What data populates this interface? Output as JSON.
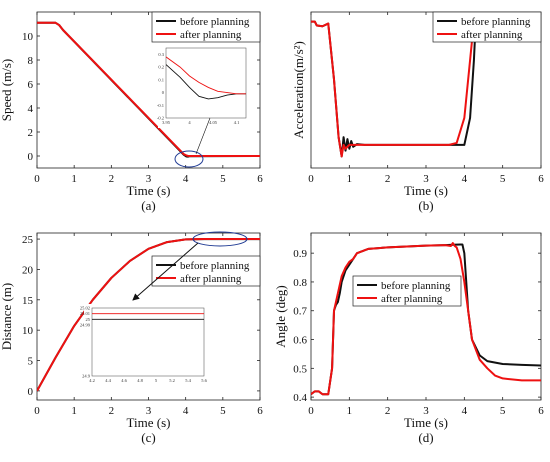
{
  "legend": {
    "before": "before planning",
    "after": "after planning"
  },
  "colors": {
    "before": "#111111",
    "after": "#ee1111",
    "inset_marker": "#1f3a93"
  },
  "chart_data": [
    {
      "id": "a",
      "type": "line",
      "label": "(a)",
      "xlabel": "Time (s)",
      "ylabel": "Speed (m/s)",
      "xlim": [
        0,
        6
      ],
      "ylim": [
        -1,
        12
      ],
      "xticks": [
        "0",
        "1",
        "2",
        "3",
        "4",
        "5",
        "6"
      ],
      "xtick_vals": [
        0,
        1,
        2,
        3,
        4,
        5,
        6
      ],
      "yticks": [
        "0",
        "2",
        "4",
        "6",
        "8",
        "10"
      ],
      "ytick_vals": [
        0,
        2,
        4,
        6,
        8,
        10
      ],
      "legend_position": "top-right",
      "grid": false,
      "series": [
        {
          "name": "before planning",
          "x": [
            0,
            0.5,
            0.6,
            0.7,
            3.95,
            4.02,
            4.06,
            4.1,
            6
          ],
          "y": [
            11.1,
            11.1,
            10.9,
            10.5,
            0.1,
            -0.04,
            -0.05,
            -0.02,
            0
          ]
        },
        {
          "name": "after planning",
          "x": [
            0,
            0.5,
            0.6,
            0.7,
            3.95,
            4.02,
            4.06,
            4.1,
            6
          ],
          "y": [
            11.1,
            11.1,
            10.9,
            10.5,
            0.15,
            0.05,
            0.01,
            0,
            0
          ]
        }
      ],
      "inset": {
        "xlim": [
          3.95,
          4.12
        ],
        "ylim": [
          -0.2,
          0.35
        ],
        "xticks": [
          "3.95",
          "4",
          "4.05",
          "4.1"
        ],
        "xtick_vals": [
          3.95,
          4.0,
          4.05,
          4.1
        ],
        "yticks": [
          "0.3",
          "0.2",
          "0.1",
          "0",
          "-0.1",
          "-0.2"
        ],
        "ytick_vals": [
          0.3,
          0.2,
          0.1,
          0,
          -0.1,
          -0.2
        ],
        "series": [
          {
            "name": "before planning",
            "x": [
              3.95,
              3.98,
              4.0,
              4.02,
              4.04,
              4.06,
              4.08,
              4.1,
              4.12
            ],
            "y": [
              0.22,
              0.12,
              0.04,
              -0.03,
              -0.05,
              -0.04,
              -0.02,
              -0.01,
              -0.01
            ]
          },
          {
            "name": "after planning",
            "x": [
              3.95,
              3.98,
              4.0,
              4.02,
              4.04,
              4.06,
              4.08,
              4.1,
              4.12
            ],
            "y": [
              0.28,
              0.2,
              0.13,
              0.08,
              0.04,
              0.01,
              0.0,
              -0.01,
              -0.01
            ]
          }
        ]
      }
    },
    {
      "id": "b",
      "type": "line",
      "label": "(b)",
      "xlabel": "Time (s)",
      "ylabel": "Acceleration(m/s²)",
      "xlim": [
        0,
        6
      ],
      "ylim": [
        -3.8,
        0.25
      ],
      "xticks": [
        "0",
        "1",
        "2",
        "3",
        "4",
        "5",
        "6"
      ],
      "xtick_vals": [
        0,
        1,
        2,
        3,
        4,
        5,
        6
      ],
      "yticks": [],
      "ytick_vals": [],
      "legend_position": "top-right",
      "grid": false,
      "series": [
        {
          "name": "before planning",
          "x": [
            0,
            0.1,
            0.15,
            0.3,
            0.45,
            0.6,
            0.72,
            0.8,
            0.85,
            0.9,
            0.95,
            1.0,
            1.05,
            1.1,
            1.2,
            1.4,
            3.8,
            4.0,
            4.15,
            4.25,
            4.3,
            4.35,
            4.45,
            6
          ],
          "y": [
            0,
            0,
            -0.1,
            -0.12,
            -0.05,
            -1.5,
            -3.0,
            -3.5,
            -3.0,
            -3.35,
            -3.05,
            -3.3,
            -3.1,
            -3.25,
            -3.18,
            -3.2,
            -3.2,
            -3.2,
            -2.5,
            -1.0,
            0.05,
            0.03,
            0,
            0
          ]
        },
        {
          "name": "after planning",
          "x": [
            0,
            0.1,
            0.15,
            0.3,
            0.45,
            0.6,
            0.72,
            0.8,
            0.85,
            0.9,
            1.0,
            1.2,
            1.4,
            3.6,
            3.8,
            4.0,
            4.15,
            4.25,
            4.3,
            4.4,
            6
          ],
          "y": [
            0,
            0,
            -0.1,
            -0.12,
            -0.05,
            -1.5,
            -3.0,
            -3.5,
            -3.2,
            -3.3,
            -3.2,
            -3.2,
            -3.2,
            -3.2,
            -3.15,
            -2.5,
            -1.0,
            0.0,
            0.05,
            0,
            0
          ]
        }
      ]
    },
    {
      "id": "c",
      "type": "line",
      "label": "(c)",
      "xlabel": "Time (s)",
      "ylabel": "Distance (m)",
      "xlim": [
        0,
        6
      ],
      "ylim": [
        -1.5,
        26
      ],
      "xticks": [
        "0",
        "1",
        "2",
        "3",
        "4",
        "5",
        "6"
      ],
      "xtick_vals": [
        0,
        1,
        2,
        3,
        4,
        5,
        6
      ],
      "yticks": [
        "0",
        "5",
        "10",
        "15",
        "20",
        "25"
      ],
      "ytick_vals": [
        0,
        5,
        10,
        15,
        20,
        25
      ],
      "legend_position": "right",
      "grid": false,
      "series": [
        {
          "name": "before planning",
          "x": [
            0,
            0.5,
            1,
            1.5,
            2,
            2.5,
            3,
            3.5,
            4,
            4.5,
            5,
            5.5,
            6
          ],
          "y": [
            0,
            5.5,
            10.7,
            15.0,
            18.6,
            21.4,
            23.4,
            24.5,
            24.95,
            25,
            25,
            25,
            25
          ]
        },
        {
          "name": "after planning",
          "x": [
            0,
            0.5,
            1,
            1.5,
            2,
            2.5,
            3,
            3.5,
            4,
            4.5,
            5,
            5.5,
            6
          ],
          "y": [
            0,
            5.5,
            10.7,
            15.0,
            18.6,
            21.4,
            23.4,
            24.5,
            24.95,
            25.01,
            25.01,
            25.01,
            25.01
          ]
        }
      ],
      "inset": {
        "xlim": [
          4.2,
          5.6
        ],
        "ylim": [
          24.9,
          25.02
        ],
        "xticks": [
          "4.2",
          "4.4",
          "4.6",
          "4.8",
          "5",
          "5.2",
          "5.4",
          "5.6"
        ],
        "xtick_vals": [
          4.2,
          4.4,
          4.6,
          4.8,
          5.0,
          5.2,
          5.4,
          5.6
        ],
        "yticks": [
          "25.02",
          "25.01",
          "25",
          "24.99",
          "24.9"
        ],
        "ytick_vals": [
          25.02,
          25.01,
          25.0,
          24.99,
          24.9
        ],
        "series": [
          {
            "name": "before planning",
            "x": [
              4.2,
              5.6
            ],
            "y": [
              25.0,
              25.0
            ]
          },
          {
            "name": "after planning",
            "x": [
              4.2,
              5.6
            ],
            "y": [
              25.01,
              25.01
            ]
          }
        ]
      }
    },
    {
      "id": "d",
      "type": "line",
      "label": "(d)",
      "xlabel": "Time (s)",
      "ylabel": "Angle (deg)",
      "xlim": [
        0,
        6
      ],
      "ylim": [
        0.39,
        0.97
      ],
      "xticks": [
        "0",
        "1",
        "2",
        "3",
        "4",
        "5",
        "6"
      ],
      "xtick_vals": [
        0,
        1,
        2,
        3,
        4,
        5,
        6
      ],
      "yticks": [
        "0.4",
        "0.5",
        "0.6",
        "0.7",
        "0.8",
        "0.9"
      ],
      "ytick_vals": [
        0.4,
        0.5,
        0.6,
        0.7,
        0.8,
        0.9
      ],
      "legend_position": "right",
      "grid": false,
      "series": [
        {
          "name": "before planning",
          "x": [
            0,
            0.1,
            0.2,
            0.3,
            0.45,
            0.55,
            0.6,
            0.65,
            0.7,
            0.75,
            0.8,
            0.9,
            1.0,
            1.1,
            1.2,
            1.5,
            2,
            2.5,
            3,
            3.5,
            3.7,
            3.9,
            3.95,
            4.0,
            4.05,
            4.1,
            4.2,
            4.4,
            4.6,
            5,
            5.5,
            6
          ],
          "y": [
            0.41,
            0.42,
            0.42,
            0.41,
            0.41,
            0.5,
            0.7,
            0.72,
            0.73,
            0.76,
            0.8,
            0.84,
            0.86,
            0.88,
            0.9,
            0.915,
            0.92,
            0.923,
            0.926,
            0.928,
            0.929,
            0.93,
            0.93,
            0.9,
            0.8,
            0.7,
            0.6,
            0.545,
            0.525,
            0.515,
            0.512,
            0.51
          ]
        },
        {
          "name": "after planning",
          "x": [
            0,
            0.1,
            0.2,
            0.3,
            0.45,
            0.55,
            0.6,
            0.65,
            0.7,
            0.8,
            0.9,
            1.0,
            1.1,
            1.2,
            1.5,
            2,
            2.5,
            3,
            3.5,
            3.65,
            3.7,
            3.75,
            3.8,
            3.9,
            4.0,
            4.1,
            4.2,
            4.4,
            4.6,
            4.8,
            5,
            5.5,
            6
          ],
          "y": [
            0.41,
            0.42,
            0.42,
            0.41,
            0.41,
            0.5,
            0.7,
            0.73,
            0.76,
            0.82,
            0.85,
            0.87,
            0.88,
            0.9,
            0.915,
            0.92,
            0.923,
            0.926,
            0.928,
            0.925,
            0.935,
            0.925,
            0.92,
            0.88,
            0.8,
            0.7,
            0.6,
            0.53,
            0.5,
            0.475,
            0.465,
            0.458,
            0.458
          ]
        }
      ]
    }
  ]
}
